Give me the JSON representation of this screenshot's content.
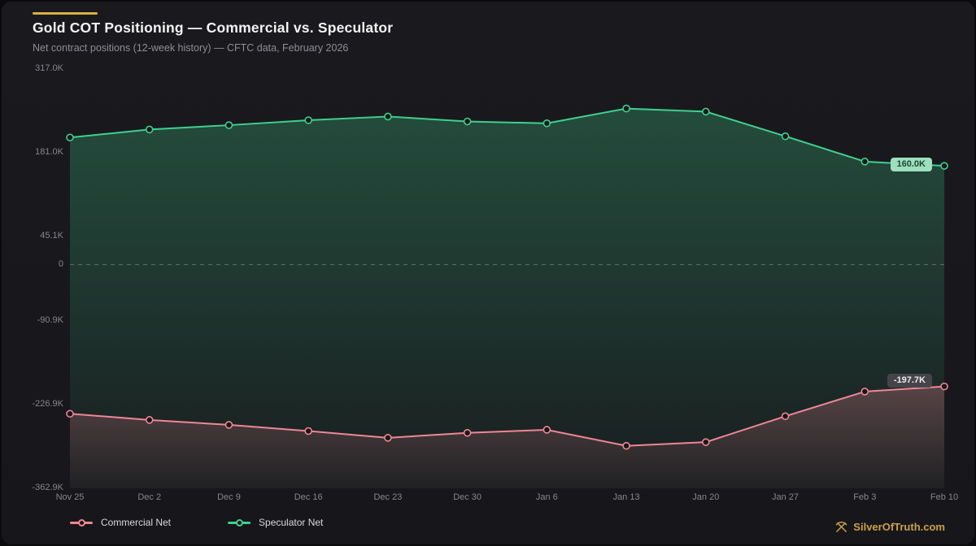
{
  "page": {
    "title": "Gold COT Positioning — Commercial vs. Speculator",
    "subtitle": "Net contract positions (12-week history) — CFTC data, February 2026",
    "watermark": "SilverOfTruth.com"
  },
  "colors": {
    "background": "#18181c",
    "accent_gold": "#d8b13c",
    "speculator_green": "#3fd08f",
    "commercial_pink": "#f08696",
    "zero_line": "#636e66",
    "axis_text": "#85858c",
    "watermark_gold": "#c9a14d"
  },
  "legend": [
    {
      "label": "Commercial Net",
      "color": "#f08696"
    },
    {
      "label": "Speculator Net",
      "color": "#3fd08f"
    }
  ],
  "chart_data": {
    "type": "line",
    "title": "Gold COT Positioning — Commercial vs. Speculator",
    "subtitle": "Net contract positions (12-week history) — CFTC data, February 2026",
    "unit": "thousand contracts (K)",
    "x": [
      "Nov 25",
      "Dec 2",
      "Dec 9",
      "Dec 16",
      "Dec 23",
      "Dec 30",
      "Jan 6",
      "Jan 13",
      "Jan 20",
      "Jan 27",
      "Feb 3",
      "Feb 10"
    ],
    "series": [
      {
        "name": "Speculator Net",
        "color": "#3fd08f",
        "values": [
          206,
          219,
          226,
          234,
          240,
          232,
          229,
          253,
          248,
          208,
          167,
          160
        ],
        "end_label": "160.0K"
      },
      {
        "name": "Commercial Net",
        "color": "#f08696",
        "values": [
          -242,
          -252,
          -260,
          -270,
          -281,
          -273,
          -268,
          -294,
          -288,
          -246,
          -206,
          -197.7
        ],
        "end_label": "-197.7K"
      }
    ],
    "y_ticks": [
      317.0,
      181.0,
      45.1,
      0,
      -90.9,
      -226.9,
      -362.9
    ],
    "y_tick_labels": [
      "317.0K",
      "181.0K",
      "45.1K",
      "0",
      "-90.9K",
      "-226.9K",
      "-362.9K"
    ],
    "ylim": [
      -362.9,
      317.0
    ],
    "zero_line": true,
    "grid": false,
    "legend_position": "bottom-left"
  }
}
